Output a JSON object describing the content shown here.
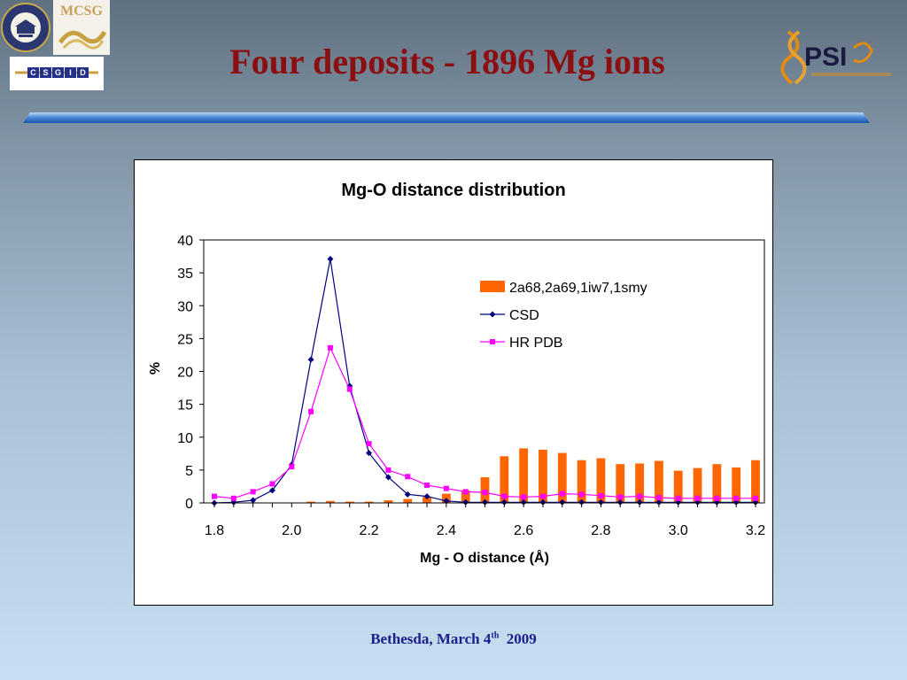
{
  "slide": {
    "title": "Four deposits - 1896 Mg ions",
    "footer": {
      "place": "Bethesda, March 4",
      "sup": "th",
      "year": "2009"
    }
  },
  "logos": {
    "uva": "University of Virginia seal",
    "mcsg": "MCSG",
    "csgid": "CSGID",
    "psi": "PSI"
  },
  "colors": {
    "title": "#8b0e10",
    "bar_series": "#ff6600",
    "csd_series": "#000080",
    "hrpdb_series": "#ff00ff",
    "footer": "#1d1d8f"
  },
  "chart_data": {
    "type": "bar+line",
    "title": "Mg-O distance distribution",
    "xlabel": "Mg - O distance (Å)",
    "ylabel": "%",
    "xlim": [
      1.8,
      3.2
    ],
    "ylim": [
      0,
      40
    ],
    "x_ticks": [
      "1.8",
      "2.0",
      "2.2",
      "2.4",
      "2.6",
      "2.8",
      "3.0",
      "3.2"
    ],
    "y_ticks": [
      "0",
      "5",
      "10",
      "15",
      "20",
      "25",
      "30",
      "35",
      "40"
    ],
    "legend_position": "upper-right",
    "x": [
      1.8,
      1.85,
      1.9,
      1.95,
      2.0,
      2.05,
      2.1,
      2.15,
      2.2,
      2.25,
      2.3,
      2.35,
      2.4,
      2.45,
      2.5,
      2.55,
      2.6,
      2.65,
      2.7,
      2.75,
      2.8,
      2.85,
      2.9,
      2.95,
      3.0,
      3.05,
      3.1,
      3.15,
      3.2
    ],
    "series": [
      {
        "name": "2a68,2a69,1iw7,1smy",
        "kind": "bar",
        "values": [
          0,
          0,
          0,
          0,
          0,
          0.2,
          0.3,
          0.2,
          0.2,
          0.4,
          0.6,
          0.9,
          1.4,
          1.9,
          3.9,
          7.1,
          8.3,
          8.1,
          7.6,
          6.5,
          6.8,
          5.9,
          6.0,
          6.4,
          4.9,
          5.3,
          5.9,
          5.4,
          6.5
        ]
      },
      {
        "name": "CSD",
        "kind": "line",
        "marker": "diamond",
        "values": [
          0,
          0.1,
          0.4,
          1.9,
          5.8,
          21.8,
          37.1,
          17.8,
          7.6,
          3.9,
          1.3,
          1.0,
          0.3,
          0.1,
          0.1,
          0.1,
          0.1,
          0.1,
          0.1,
          0.1,
          0.1,
          0.1,
          0.1,
          0.1,
          0.1,
          0.1,
          0.1,
          0.1,
          0.1
        ]
      },
      {
        "name": "HR PDB",
        "kind": "line",
        "marker": "square",
        "values": [
          1.0,
          0.7,
          1.7,
          2.9,
          5.5,
          13.9,
          23.6,
          17.3,
          9.0,
          5.0,
          4.0,
          2.7,
          2.2,
          1.7,
          1.6,
          1.0,
          0.9,
          1.0,
          1.4,
          1.3,
          1.1,
          0.9,
          1.0,
          0.8,
          0.7,
          0.7,
          0.7,
          0.7,
          0.7
        ]
      }
    ]
  }
}
